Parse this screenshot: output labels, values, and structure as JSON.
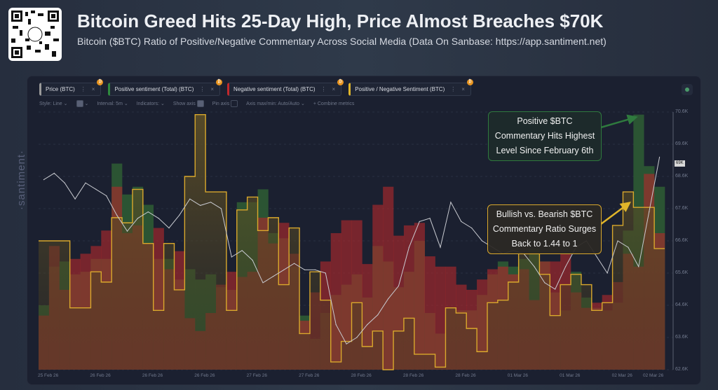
{
  "header": {
    "title": "Bitcoin Greed Hits 25-Day High, Price Almost Breaches $70K",
    "subtitle": "Bitcoin ($BTC) Ratio of Positive/Negative Commentary Across Social Media (Data On Sanbase: https://app.santiment.net)",
    "qr_logo_text": "S"
  },
  "legend": {
    "metrics": [
      {
        "label": "Price (BTC)",
        "color": "#9a9a9a"
      },
      {
        "label": "Positive sentiment (Total) (BTC)",
        "color": "#2f8a3e"
      },
      {
        "label": "Negative sentiment (Total) (BTC)",
        "color": "#c0282c"
      },
      {
        "label": "Positive / Negative Sentiment (BTC)",
        "color": "#e0b52a"
      }
    ],
    "menu_icon": "⋮",
    "close_icon": "×",
    "badge": "₿"
  },
  "toolbar": {
    "style": "Style: Line ⌄",
    "color": "⌄",
    "interval": "Interval: 5m ⌄",
    "indicators": "Indicators: ⌄",
    "show_axis": "Show axis",
    "pin_axis": "Pin axis",
    "axis_minmax": "Axis max/min: Auto/Auto ⌄",
    "combine": "+ Combine metrics"
  },
  "watermark": "·santiment·",
  "annotations": {
    "positive": [
      "Positive $BTC",
      "Commentary Hits Highest",
      "Level Since February 6th"
    ],
    "ratio": [
      "Bullish vs. Bearish $BTC",
      "Commentary Ratio Surges",
      "Back to 1.44 to 1"
    ]
  },
  "chart_data": {
    "type": "bar",
    "xlabel": "",
    "ylabel": "",
    "x_tick_labels": [
      "25 Feb 26",
      "26 Feb 26",
      "26 Feb 26",
      "26 Feb 26",
      "27 Feb 26",
      "27 Feb 26",
      "28 Feb 26",
      "28 Feb 26",
      "28 Feb 26",
      "01 Mar 26",
      "01 Mar 26",
      "02 Mar 26",
      "02 Mar 26"
    ],
    "price_axis": {
      "ticks": [
        "70.6K",
        "69.6K",
        "68.6K",
        "67.6K",
        "66.6K",
        "65.6K",
        "64.6K",
        "63.6K",
        "62.6K"
      ],
      "ylim": [
        62.6,
        70.6
      ],
      "current_price_tag": "69K"
    },
    "grid": true,
    "series": [
      {
        "name": "Price (BTC)",
        "kind": "line",
        "unit": "K USD",
        "values": [
          68.5,
          68.7,
          68.4,
          67.9,
          68.4,
          68.2,
          68.0,
          67.4,
          66.9,
          67.3,
          67.5,
          67.3,
          67.0,
          67.4,
          67.9,
          67.7,
          67.8,
          67.6,
          66.1,
          66.3,
          66.0,
          65.3,
          65.5,
          65.7,
          65.9,
          65.7,
          65.7,
          65.6,
          64.0,
          63.4,
          63.6,
          64.0,
          64.3,
          64.8,
          65.2,
          66.4,
          67.2,
          67.3,
          66.4,
          67.8,
          67.2,
          67.0,
          66.6,
          66.4,
          66.2,
          66.3,
          66.2,
          65.8,
          65.3,
          65.1,
          65.8,
          66.4,
          66.6,
          66.1,
          65.6,
          66.6,
          66.4,
          65.8,
          67.5,
          69.2
        ]
      },
      {
        "name": "Positive sentiment (Total) (BTC)",
        "kind": "step-bar",
        "values": [
          25,
          40,
          42,
          37,
          38,
          43,
          43,
          80,
          68,
          71,
          64,
          43,
          43,
          35,
          39,
          35,
          37,
          32,
          31,
          65,
          65,
          70,
          53,
          51,
          40,
          21,
          12,
          22,
          29,
          33,
          37,
          28,
          48,
          42,
          32,
          38,
          50,
          22,
          14,
          24,
          23,
          23,
          29,
          37,
          42,
          40,
          43,
          47,
          42,
          30,
          23,
          38,
          28,
          24,
          23,
          26,
          54,
          99,
          79,
          71
        ]
      },
      {
        "name": "Negative sentiment (Total) (BTC)",
        "kind": "step-bar",
        "values": [
          21,
          48,
          31,
          43,
          45,
          48,
          54,
          71,
          53,
          56,
          49,
          55,
          39,
          46,
          20,
          15,
          22,
          33,
          38,
          36,
          38,
          59,
          49,
          57,
          45,
          19,
          30,
          42,
          53,
          58,
          58,
          41,
          64,
          71,
          52,
          56,
          57,
          44,
          40,
          40,
          33,
          31,
          35,
          39,
          40,
          37,
          39,
          27,
          42,
          42,
          45,
          30,
          24,
          26,
          29,
          34,
          45,
          40,
          76,
          53
        ]
      },
      {
        "name": "Positive / Negative Sentiment (BTC)",
        "kind": "step-area",
        "values": [
          50,
          50,
          50,
          24,
          24,
          38,
          34,
          59,
          57,
          70,
          49,
          23,
          49,
          31,
          75,
          99,
          69,
          69,
          23,
          62,
          67,
          54,
          59,
          33,
          55,
          14,
          38,
          27,
          3,
          11,
          26,
          9,
          15,
          0,
          15,
          20,
          6,
          6,
          1,
          24,
          22,
          16,
          7,
          26,
          27,
          34,
          45,
          45,
          37,
          21,
          33,
          37,
          33,
          23,
          26,
          56,
          69,
          63,
          63,
          47
        ]
      }
    ]
  }
}
